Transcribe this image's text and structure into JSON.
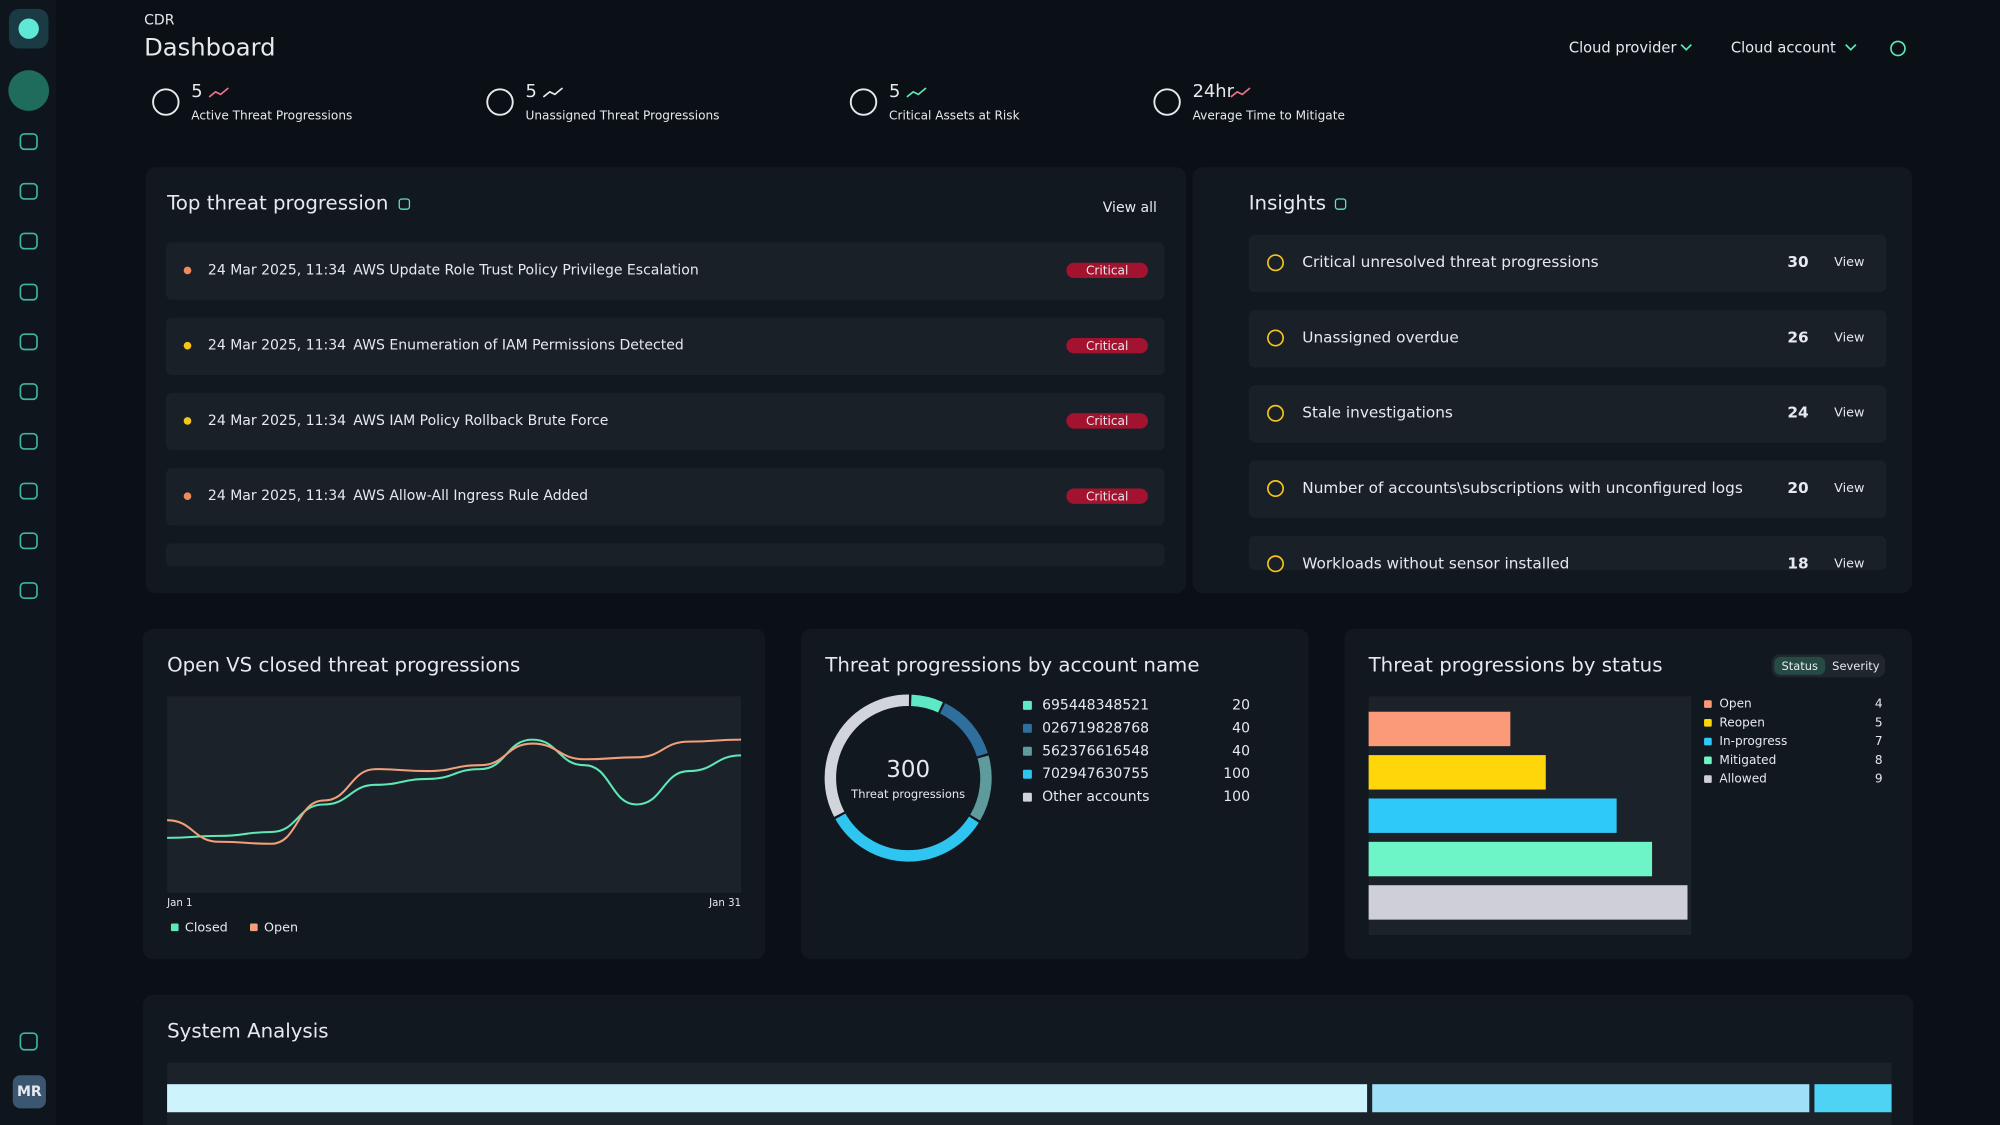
{
  "breadcrumb": "CDR",
  "title": "Dashboard",
  "filters": [
    "Cloud provider",
    "Cloud account"
  ],
  "user_initials": "MR",
  "stats": [
    {
      "value": "5",
      "label": "Active Threat Progressions"
    },
    {
      "value": "5",
      "label": "Unassigned Threat Progressions"
    },
    {
      "value": "5",
      "label": "Critical Assets at Risk"
    },
    {
      "value": "24hr",
      "label": "Average Time to Mitigate"
    }
  ],
  "top_threats": {
    "title": "Top threat progression",
    "action": "View all",
    "rows": [
      {
        "date": "24 Mar 2025, 11:34",
        "name": "AWS Update Role Trust Policy Privilege Escalation",
        "severity": "Critical",
        "dot": "#f08a5d"
      },
      {
        "date": "24 Mar 2025, 11:34",
        "name": "AWS Enumeration of IAM Permissions Detected",
        "severity": "Critical",
        "dot": "#f5c518"
      },
      {
        "date": "24 Mar 2025, 11:34",
        "name": "AWS IAM Policy Rollback Brute Force",
        "severity": "Critical",
        "dot": "#f5c518"
      },
      {
        "date": "24 Mar 2025, 11:34",
        "name": "AWS Allow-All Ingress Rule Added",
        "severity": "Critical",
        "dot": "#f08a5d"
      }
    ]
  },
  "insights": {
    "title": "Insights",
    "rows": [
      {
        "label": "Critical unresolved threat progressions",
        "count": 30,
        "action": "View"
      },
      {
        "label": "Unassigned overdue",
        "count": 26,
        "action": "View"
      },
      {
        "label": "Stale investigations",
        "count": 24,
        "action": "View"
      },
      {
        "label": "Number of accounts\\subscriptions with unconfigured logs",
        "count": 20,
        "action": "View"
      },
      {
        "label": "Workloads without sensor installed",
        "count": 18,
        "action": "View"
      }
    ]
  },
  "line_chart": {
    "type": "line",
    "title": "Open VS closed threat progressions",
    "x_labels": [
      "Jan 1",
      "Jan 31"
    ],
    "ylim": [
      0,
      100
    ],
    "series": [
      {
        "name": "Closed",
        "color": "#5ee8b5",
        "values": [
          28,
          29,
          31,
          45,
          55,
          58,
          63,
          78,
          65,
          45,
          62,
          70
        ]
      },
      {
        "name": "Open",
        "color": "#f0a07a",
        "values": [
          37,
          26,
          25,
          47,
          63,
          62,
          65,
          76,
          68,
          69,
          77,
          78
        ]
      }
    ]
  },
  "donut": {
    "type": "pie",
    "title": "Threat progressions by account name",
    "total": 300,
    "total_label": "Threat progressions",
    "categories": [
      "695448348521",
      "026719828768",
      "562376616548",
      "702947630755",
      "Other accounts"
    ],
    "values": [
      20,
      40,
      40,
      100,
      100
    ],
    "colors": [
      "#5ee8c5",
      "#2f6f9e",
      "#5f9a9c",
      "#2ec5f0",
      "#d2d4dc"
    ]
  },
  "status_chart": {
    "type": "bar",
    "title": "Threat progressions by status",
    "toggle": [
      "Status",
      "Severity"
    ],
    "categories": [
      "Open",
      "Reopen",
      "In-progress",
      "Mitigated",
      "Allowed"
    ],
    "values": [
      4,
      5,
      7,
      8,
      9
    ],
    "colors": [
      "#fb9a78",
      "#ffd60a",
      "#2ec9f7",
      "#6df5c7",
      "#cfcfd8"
    ],
    "xlim": [
      0,
      9
    ]
  },
  "system_analysis": {
    "title": "System Analysis",
    "values": [
      70,
      25.5,
      4.5
    ],
    "colors": [
      "#cdf3fc",
      "#9fe0f7",
      "#4fd3f4"
    ]
  }
}
